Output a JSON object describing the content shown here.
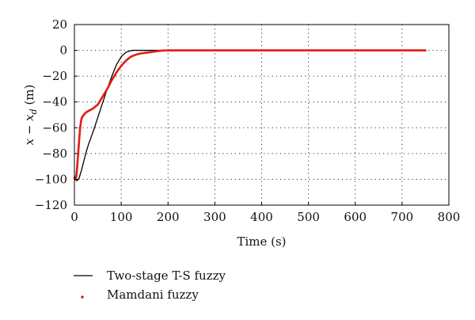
{
  "chart_data": {
    "type": "line",
    "xlabel": "Time (s)",
    "ylabel_main": "x − x",
    "ylabel_sub": "d",
    "ylabel_unit": " (m)",
    "xlim": [
      0,
      800
    ],
    "ylim": [
      -120,
      20
    ],
    "xticks": [
      0,
      100,
      200,
      300,
      400,
      500,
      600,
      700,
      800
    ],
    "yticks": [
      20,
      0,
      -20,
      -40,
      -60,
      -80,
      -100,
      -120
    ],
    "grid": "dotted",
    "legend_placement": "below",
    "series": [
      {
        "name": "Two-stage T-S fuzzy",
        "style": "line",
        "color": "#000000",
        "x": [
          0,
          2,
          5,
          8,
          10,
          15,
          20,
          25,
          30,
          40,
          50,
          60,
          70,
          80,
          90,
          100,
          110,
          120,
          125,
          130,
          140,
          160,
          180,
          200,
          300,
          400,
          500,
          600,
          700,
          750
        ],
        "y": [
          -97,
          -100,
          -101,
          -100,
          -99,
          -93,
          -86,
          -79,
          -73,
          -63,
          -52,
          -41,
          -30,
          -20,
          -11,
          -5,
          -1.5,
          -0.3,
          0,
          0,
          0,
          0,
          0,
          0,
          0,
          0,
          0,
          0,
          0,
          0
        ]
      },
      {
        "name": "Mamdani fuzzy",
        "style": "dots",
        "color": "#e0201b",
        "x": [
          0,
          2,
          4,
          6,
          8,
          10,
          12,
          14,
          16,
          18,
          20,
          25,
          30,
          35,
          40,
          50,
          60,
          70,
          80,
          90,
          100,
          110,
          120,
          130,
          140,
          150,
          160,
          170,
          180,
          190,
          200,
          300,
          400,
          500,
          600,
          700,
          750
        ],
        "y": [
          -99,
          -100,
          -98,
          -90,
          -80,
          -70,
          -61,
          -55,
          -52,
          -51,
          -50,
          -48,
          -47,
          -46,
          -45,
          -42,
          -36,
          -30,
          -23,
          -17,
          -12,
          -8,
          -5,
          -3.5,
          -2.5,
          -2,
          -1.5,
          -1,
          -0.5,
          -0.1,
          0,
          0,
          0,
          0,
          0,
          0,
          0
        ]
      }
    ]
  }
}
